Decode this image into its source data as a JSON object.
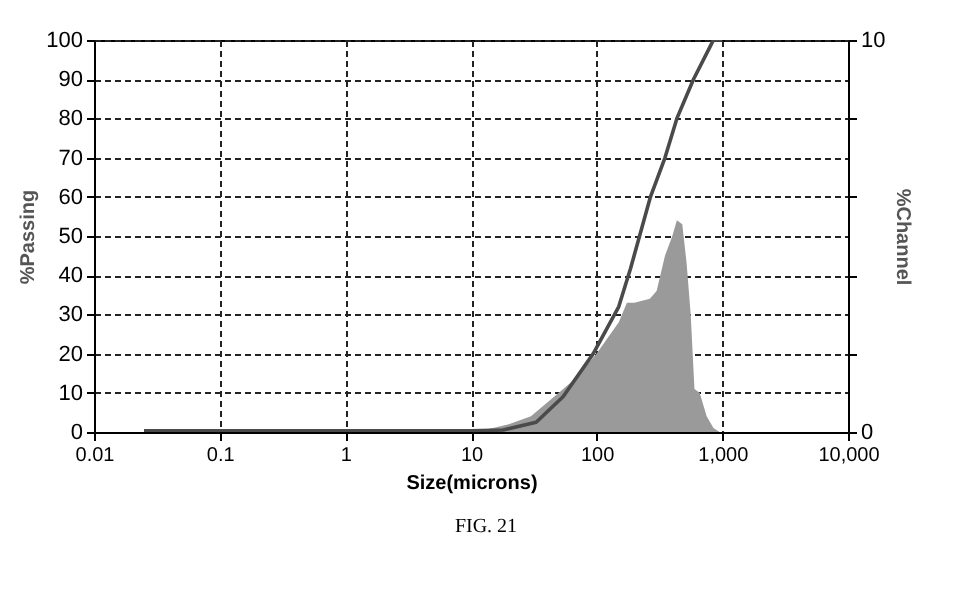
{
  "chart_data": {
    "type": "line",
    "xlabel": "Size(microns)",
    "ylabel": "%Passing",
    "y2label": "%Channel",
    "log": "x",
    "grid": true,
    "xlim": [
      0.01,
      10000
    ],
    "xticks": [
      0.01,
      0.1,
      1,
      10,
      100,
      {
        "value": 1000,
        "label": "1,000"
      },
      {
        "value": 10000,
        "label": "10,000"
      }
    ],
    "ylim": [
      0,
      100
    ],
    "yticks": [
      0,
      10,
      20,
      30,
      40,
      50,
      60,
      70,
      80,
      90,
      100
    ],
    "y2lim": [
      0,
      10
    ],
    "y2ticks": [
      0,
      {
        "value": 2,
        "label": null
      },
      {
        "value": 4,
        "label": null
      },
      {
        "value": 6,
        "label": null
      },
      {
        "value": 8,
        "label": null
      },
      10
    ],
    "series": [
      {
        "type": "area",
        "axis": "y2",
        "color": "#9a9a9a",
        "x": [
          0.025,
          12.5,
          15,
          20,
          30,
          50,
          70,
          100,
          150,
          174,
          200,
          265,
          300,
          350,
          400,
          435,
          480,
          520,
          560,
          600,
          660,
          750,
          850,
          950
        ],
        "values": [
          0.05,
          0.05,
          0.1,
          0.2,
          0.4,
          1.0,
          1.4,
          2.0,
          2.8,
          3.3,
          3.3,
          3.4,
          3.6,
          4.5,
          5.0,
          5.4,
          5.3,
          4.3,
          3.0,
          1.1,
          1.0,
          0.4,
          0.1,
          0
        ]
      },
      {
        "color": "#4a4a4a",
        "x": [
          0.025,
          10,
          18,
          33,
          54,
          94,
          150,
          186,
          268,
          350,
          435,
          590,
          790,
          850,
          1000
        ],
        "values": [
          0.3,
          0.3,
          0.5,
          2.5,
          9,
          20,
          32,
          41.7,
          60,
          70,
          80,
          90,
          98,
          100,
          100
        ]
      }
    ],
    "annotations": [
      "FIG. 21"
    ]
  }
}
